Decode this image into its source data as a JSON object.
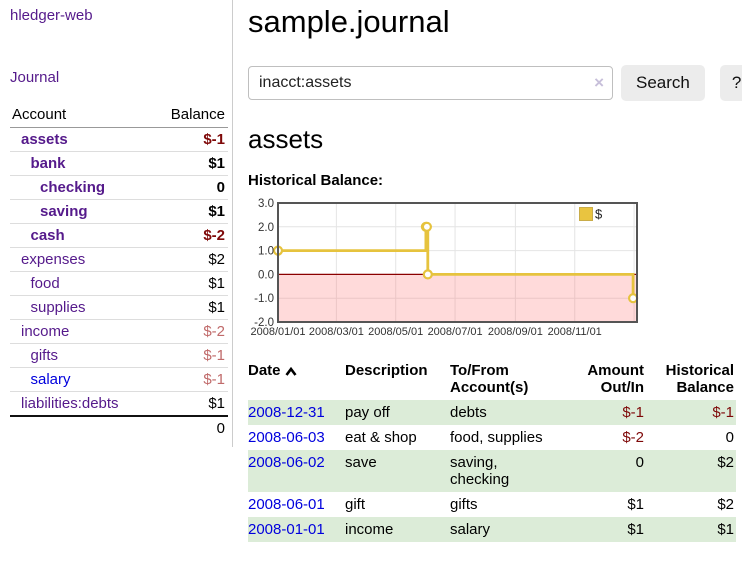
{
  "app": {
    "title": "hledger-web"
  },
  "sidebar": {
    "journal_link": "Journal",
    "accounts_table": {
      "account_header": "Account",
      "balance_header": "Balance",
      "rows": [
        {
          "name": "assets",
          "indent": 0,
          "selected": true,
          "balance": "$-1"
        },
        {
          "name": "bank",
          "indent": 1,
          "selected": true,
          "balance": "$1"
        },
        {
          "name": "checking",
          "indent": 2,
          "selected": true,
          "balance": "0"
        },
        {
          "name": "saving",
          "indent": 2,
          "selected": true,
          "balance": "$1"
        },
        {
          "name": "cash",
          "indent": 1,
          "selected": true,
          "balance": "$-2"
        },
        {
          "name": "expenses",
          "indent": 0,
          "selected": false,
          "balance": "$2"
        },
        {
          "name": "food",
          "indent": 1,
          "selected": false,
          "balance": "$1"
        },
        {
          "name": "supplies",
          "indent": 1,
          "selected": false,
          "balance": "$1"
        },
        {
          "name": "income",
          "indent": 0,
          "selected": false,
          "balance": "$-2"
        },
        {
          "name": "gifts",
          "indent": 1,
          "selected": false,
          "balance": "$-1"
        },
        {
          "name": "salary",
          "indent": 1,
          "selected": false,
          "balance": "$-1",
          "unvisited": true
        },
        {
          "name": "liabilities:debts",
          "indent": 0,
          "selected": false,
          "balance": "$1"
        }
      ],
      "total": "0"
    }
  },
  "main": {
    "title": "sample.journal",
    "search": {
      "query": "inacct:assets",
      "clear_icon": "×",
      "button_label": "Search",
      "help_label": "?"
    },
    "account_heading": "assets",
    "chart_heading": "Historical Balance:"
  },
  "chart_data": {
    "type": "line",
    "title": "Historical Balance:",
    "step": true,
    "series": [
      {
        "name": "$",
        "points": [
          [
            "2008-01-01",
            1
          ],
          [
            "2008-06-01",
            2
          ],
          [
            "2008-06-02",
            2
          ],
          [
            "2008-06-03",
            0
          ],
          [
            "2008-12-31",
            -1
          ]
        ]
      }
    ],
    "x_ticks": [
      "2008/01/01",
      "2008/03/01",
      "2008/05/01",
      "2008/07/01",
      "2008/09/01",
      "2008/11/01"
    ],
    "x_grid": [
      "2008-03-01",
      "2008-05-01",
      "2008-07-01",
      "2008-09-01",
      "2008-11-01",
      "2009-01-01"
    ],
    "x_range": [
      "2008-01-01",
      "2009-01-04"
    ],
    "y_ticks": [
      3.0,
      2.0,
      1.0,
      0.0,
      -1.0,
      -2.0
    ],
    "ylim": [
      -2,
      3
    ],
    "legend": {
      "label": "$",
      "position": "top-right"
    },
    "colors": {
      "line": "#e6c33e",
      "point_fill": "#ffffff",
      "zero_line": "#8b0000",
      "negative_region": "rgba(255,120,120,0.27)",
      "grid": "#e4e4e4",
      "border": "#555555",
      "legend_square": "#e9c440",
      "legend_square_border": "#c9ac49"
    }
  },
  "register": {
    "headers": [
      "Date",
      "Description",
      "To/From Account(s)",
      "Amount Out/In",
      "Historical Balance"
    ],
    "rows": [
      {
        "date": "2008-12-31",
        "description": "pay off",
        "accounts": "debts",
        "amount": "$-1",
        "balance": "$-1"
      },
      {
        "date": "2008-06-03",
        "description": "eat & shop",
        "accounts": "food, supplies",
        "amount": "$-2",
        "balance": "0"
      },
      {
        "date": "2008-06-02",
        "description": "save",
        "accounts": "saving, checking",
        "amount": "0",
        "balance": "$2"
      },
      {
        "date": "2008-06-01",
        "description": "gift",
        "accounts": "gifts",
        "amount": "$1",
        "balance": "$2"
      },
      {
        "date": "2008-01-01",
        "description": "income",
        "accounts": "salary",
        "amount": "$1",
        "balance": "$1"
      }
    ]
  }
}
